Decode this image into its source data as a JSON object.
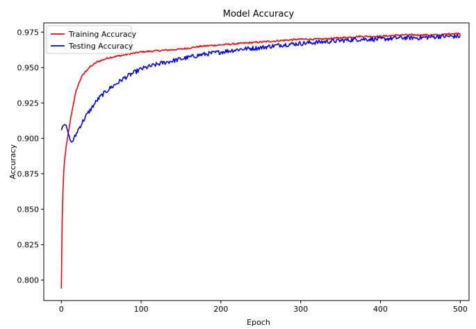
{
  "chart_data": {
    "type": "line",
    "title": "Model Accuracy",
    "xlabel": "Epoch",
    "ylabel": "Accuracy",
    "xlim": [
      -22,
      511
    ],
    "ylim": [
      0.7855,
      0.9815
    ],
    "xticks": [
      0,
      100,
      200,
      300,
      400,
      500
    ],
    "xtick_labels": [
      "0",
      "100",
      "200",
      "300",
      "400",
      "500"
    ],
    "yticks": [
      0.8,
      0.825,
      0.85,
      0.875,
      0.9,
      0.925,
      0.95,
      0.975
    ],
    "ytick_labels": [
      "0.800",
      "0.825",
      "0.850",
      "0.875",
      "0.900",
      "0.925",
      "0.950",
      "0.975"
    ],
    "grid": false,
    "legend_position": "upper left",
    "series": [
      {
        "name": "Training Accuracy",
        "color": "#ff0000",
        "x": [
          0,
          1,
          2,
          3,
          4,
          5,
          6,
          8,
          10,
          12,
          14,
          16,
          18,
          20,
          25,
          30,
          35,
          40,
          45,
          50,
          60,
          70,
          80,
          90,
          100,
          125,
          150,
          175,
          200,
          225,
          250,
          275,
          300,
          325,
          350,
          375,
          400,
          425,
          450,
          475,
          490,
          500
        ],
        "y": [
          0.794,
          0.84,
          0.862,
          0.876,
          0.884,
          0.889,
          0.894,
          0.901,
          0.908,
          0.915,
          0.921,
          0.927,
          0.932,
          0.936,
          0.943,
          0.947,
          0.95,
          0.952,
          0.954,
          0.955,
          0.957,
          0.958,
          0.959,
          0.96,
          0.961,
          0.962,
          0.963,
          0.965,
          0.966,
          0.967,
          0.968,
          0.969,
          0.97,
          0.97,
          0.971,
          0.972,
          0.972,
          0.973,
          0.973,
          0.973,
          0.974,
          0.974
        ]
      },
      {
        "name": "Testing Accuracy",
        "color": "#0000ff",
        "x": [
          0,
          2,
          4,
          6,
          8,
          10,
          12,
          14,
          16,
          18,
          20,
          25,
          30,
          35,
          40,
          45,
          50,
          60,
          70,
          80,
          90,
          100,
          125,
          150,
          175,
          200,
          225,
          250,
          275,
          300,
          325,
          350,
          375,
          400,
          425,
          450,
          475,
          490,
          500
        ],
        "y": [
          0.906,
          0.909,
          0.91,
          0.909,
          0.905,
          0.901,
          0.897,
          0.898,
          0.9,
          0.902,
          0.905,
          0.91,
          0.915,
          0.919,
          0.923,
          0.927,
          0.93,
          0.935,
          0.939,
          0.943,
          0.946,
          0.949,
          0.953,
          0.956,
          0.959,
          0.961,
          0.963,
          0.964,
          0.966,
          0.967,
          0.968,
          0.969,
          0.97,
          0.97,
          0.971,
          0.971,
          0.972,
          0.972,
          0.972
        ]
      }
    ]
  }
}
